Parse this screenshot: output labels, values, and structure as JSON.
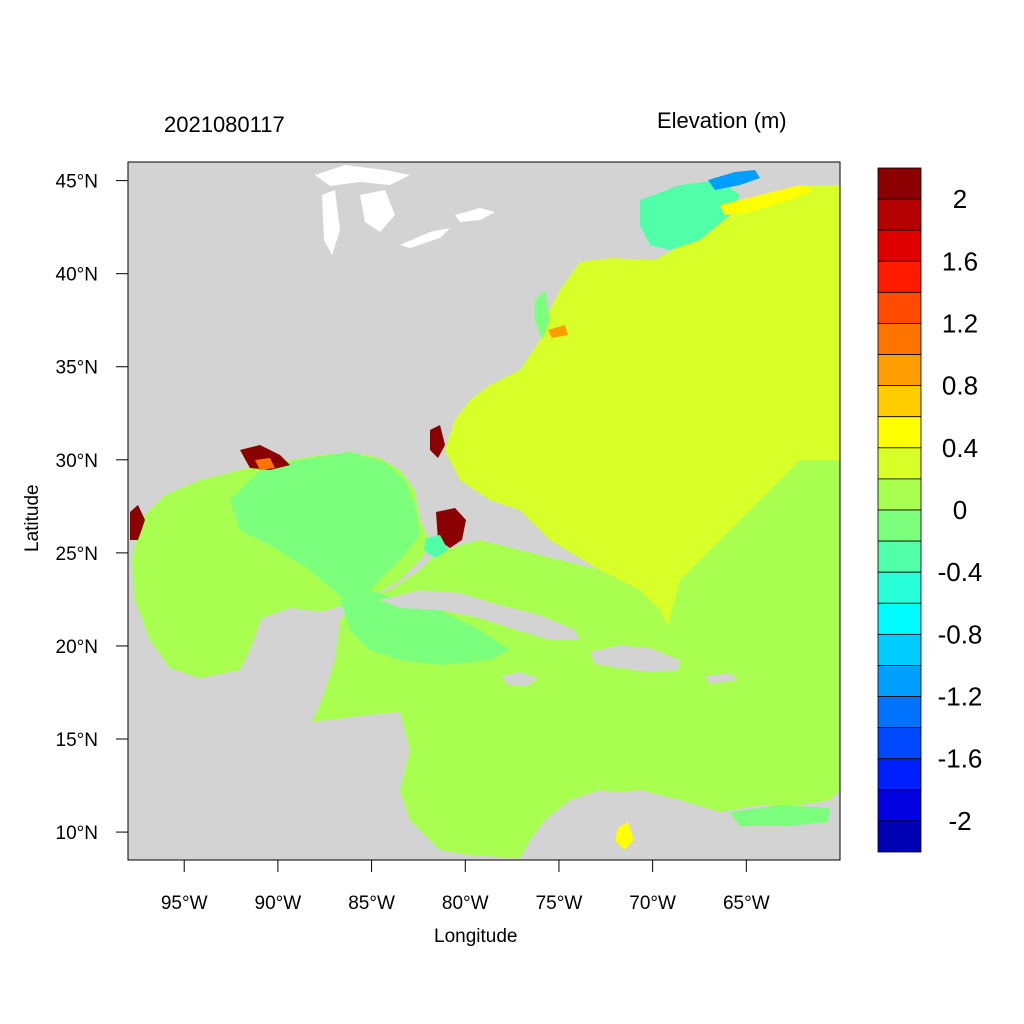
{
  "titles": {
    "left": "2021080117",
    "right": "Elevation (m)"
  },
  "axes": {
    "xlabel": "Longitude",
    "ylabel": "Latitude",
    "x_ticks": [
      "95°W",
      "90°W",
      "85°W",
      "80°W",
      "75°W",
      "70°W",
      "65°W"
    ],
    "x_tick_values": [
      -95,
      -90,
      -85,
      -80,
      -75,
      -70,
      -65
    ],
    "y_ticks": [
      "10°N",
      "15°N",
      "20°N",
      "25°N",
      "30°N",
      "35°N",
      "40°N",
      "45°N"
    ],
    "y_tick_values": [
      10,
      15,
      20,
      25,
      30,
      35,
      40,
      45
    ],
    "lon_range": [
      -98.0,
      -60.0
    ],
    "lat_range": [
      8.5,
      46.0
    ]
  },
  "colorbar": {
    "labels": [
      "2",
      "1.6",
      "1.2",
      "0.8",
      "0.4",
      "0",
      "-0.4",
      "-0.8",
      "-1.2",
      "-1.6",
      "-2"
    ],
    "colors": [
      "#8b0000",
      "#b40000",
      "#e00000",
      "#ff1a00",
      "#ff4a00",
      "#ff7400",
      "#ff9e00",
      "#ffcc00",
      "#ffff00",
      "#d8ff28",
      "#a8ff50",
      "#7cff7c",
      "#50ffa8",
      "#28ffd8",
      "#00fbff",
      "#00ccff",
      "#009eff",
      "#0074ff",
      "#0048ff",
      "#0020ff",
      "#0000e0",
      "#0000b4"
    ]
  },
  "map_colors": {
    "land": "#d3d3d3",
    "water_white": "#ffffff",
    "ocean_main": "#d8ff28",
    "shelf": "#a8ff50",
    "gulf": "#7cff7c",
    "surge_high": "#8b0000",
    "low": "#50ffa8"
  }
}
